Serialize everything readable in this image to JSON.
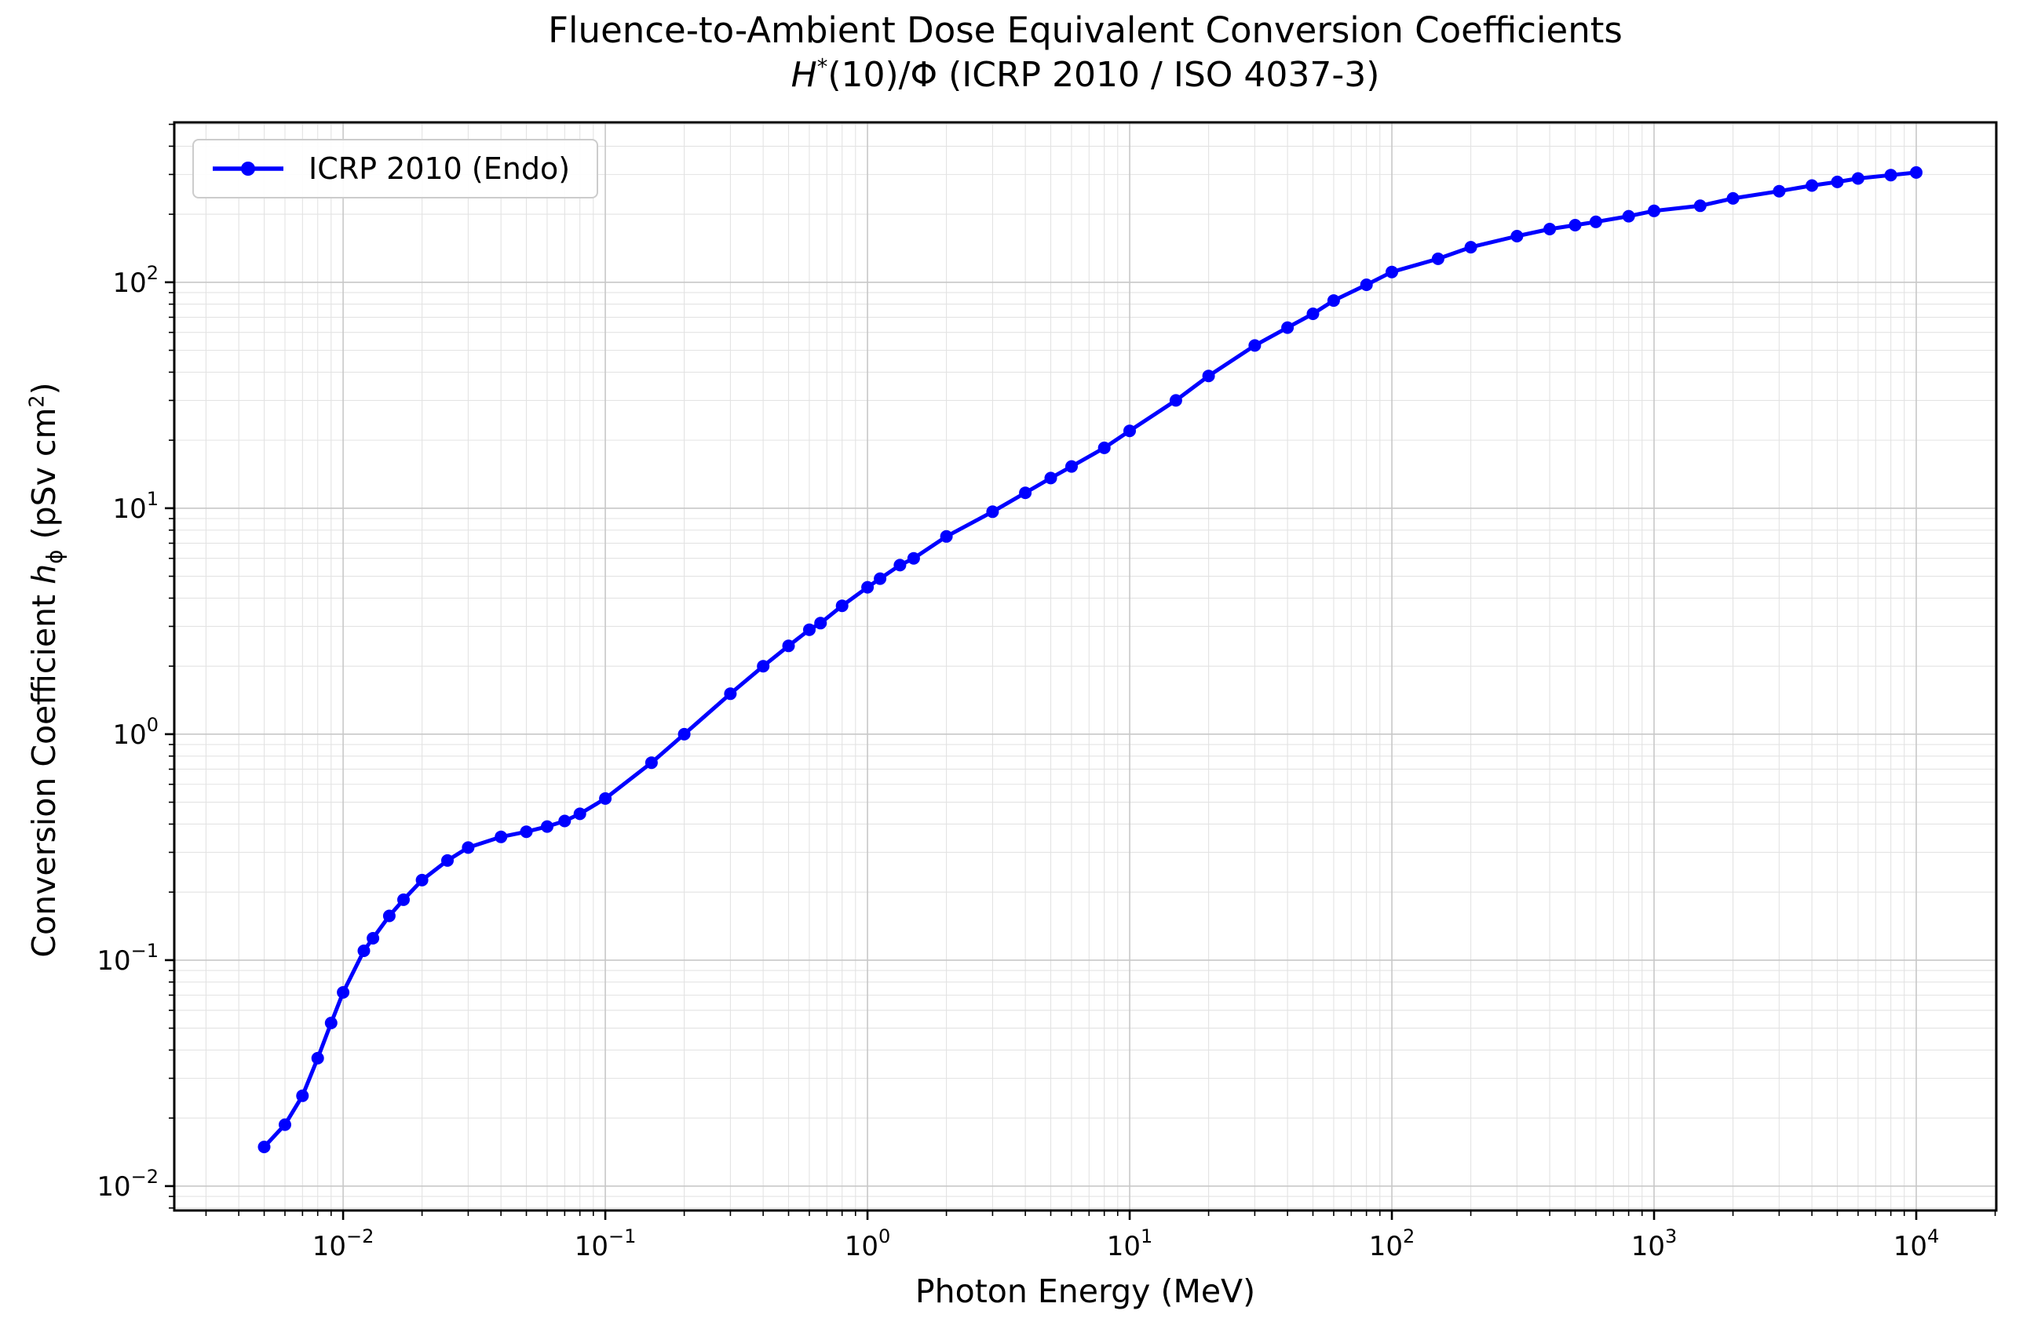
{
  "title": {
    "line1": "Fluence-to-Ambient Dose Equivalent Conversion Coefficients",
    "line2_h": "H",
    "line2_sup": "*",
    "line2_rest": "(10)/Φ (ICRP 2010 / ISO 4037-3)"
  },
  "axes": {
    "xlabel": "Photon Energy (MeV)",
    "ylabel_pre": "Conversion Coefficient ",
    "ylabel_h": "h",
    "ylabel_sub": "ϕ",
    "ylabel_mid": " (pSv cm",
    "ylabel_sup": "2",
    "ylabel_post": ")"
  },
  "legend": {
    "label": "ICRP 2010 (Endo)",
    "position": "upper left"
  },
  "colors": {
    "series": "#0000ff",
    "grid_major": "#c8c8c8",
    "grid_minor": "#e3e3e3",
    "spine": "#000000",
    "background": "#ffffff"
  },
  "chart_data": {
    "type": "line",
    "xscale": "log",
    "yscale": "log",
    "title": "Fluence-to-Ambient Dose Equivalent Conversion Coefficients H*(10)/Φ (ICRP 2010 / ISO 4037-3)",
    "xlabel": "Photon Energy (MeV)",
    "ylabel": "Conversion Coefficient hϕ (pSv cm2)",
    "xlim": [
      0.00227,
      20200
    ],
    "ylim": [
      0.0078,
      510
    ],
    "grid": {
      "major": true,
      "minor": true
    },
    "legend_position": "upper left",
    "x_tick_exponents": [
      "−2",
      "−1",
      "0",
      "1",
      "2",
      "3",
      "4"
    ],
    "y_tick_exponents": [
      "−2",
      "−1",
      "0",
      "1",
      "2"
    ],
    "series": [
      {
        "name": "ICRP 2010 (Endo)",
        "color": "#0000ff",
        "marker": "o",
        "points": [
          [
            0.005,
            0.0149
          ],
          [
            0.006,
            0.0187
          ],
          [
            0.007,
            0.0251
          ],
          [
            0.008,
            0.0368
          ],
          [
            0.009,
            0.0527
          ],
          [
            0.01,
            0.072
          ],
          [
            0.012,
            0.11
          ],
          [
            0.013,
            0.125
          ],
          [
            0.015,
            0.157
          ],
          [
            0.017,
            0.185
          ],
          [
            0.02,
            0.226
          ],
          [
            0.025,
            0.276
          ],
          [
            0.03,
            0.315
          ],
          [
            0.04,
            0.351
          ],
          [
            0.05,
            0.37
          ],
          [
            0.06,
            0.39
          ],
          [
            0.07,
            0.413
          ],
          [
            0.08,
            0.444
          ],
          [
            0.1,
            0.519
          ],
          [
            0.15,
            0.748
          ],
          [
            0.2,
            1.0
          ],
          [
            0.3,
            1.51
          ],
          [
            0.4,
            2.0
          ],
          [
            0.5,
            2.46
          ],
          [
            0.6,
            2.9
          ],
          [
            0.662,
            3.1
          ],
          [
            0.8,
            3.7
          ],
          [
            1.0,
            4.47
          ],
          [
            1.117,
            4.88
          ],
          [
            1.33,
            5.6
          ],
          [
            1.5,
            6.0
          ],
          [
            2.0,
            7.5
          ],
          [
            3.0,
            9.65
          ],
          [
            4.0,
            11.7
          ],
          [
            5.0,
            13.6
          ],
          [
            6.0,
            15.3
          ],
          [
            8.0,
            18.5
          ],
          [
            10,
            22.0
          ],
          [
            15,
            30.0
          ],
          [
            20,
            38.5
          ],
          [
            30,
            52.5
          ],
          [
            40,
            63.0
          ],
          [
            50,
            72.5
          ],
          [
            60,
            83.0
          ],
          [
            80,
            97.5
          ],
          [
            100,
            111
          ],
          [
            150,
            127
          ],
          [
            200,
            143
          ],
          [
            300,
            160
          ],
          [
            400,
            172
          ],
          [
            500,
            179
          ],
          [
            600,
            185
          ],
          [
            800,
            196
          ],
          [
            1000,
            207
          ],
          [
            1500,
            218
          ],
          [
            2000,
            235
          ],
          [
            3000,
            253
          ],
          [
            4000,
            268
          ],
          [
            5000,
            278
          ],
          [
            6000,
            288
          ],
          [
            8000,
            298
          ],
          [
            10000,
            306
          ]
        ]
      }
    ]
  }
}
